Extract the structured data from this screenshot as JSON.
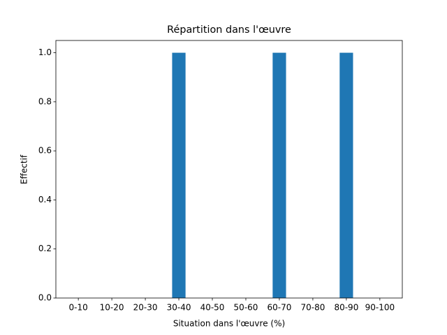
{
  "chart_data": {
    "type": "bar",
    "title": "Répartition dans l'œuvre",
    "xlabel": "Situation dans l'œuvre (%)",
    "ylabel": "Effectif",
    "categories": [
      "0-10",
      "10-20",
      "20-30",
      "30-40",
      "40-50",
      "50-60",
      "60-70",
      "70-80",
      "80-90",
      "90-100"
    ],
    "values": [
      0,
      0,
      0,
      1,
      0,
      0,
      1,
      0,
      1,
      0
    ],
    "color": "#1f77b4",
    "ylim": [
      0,
      1.05
    ],
    "yticks": [
      {
        "value": 0,
        "label": "0.0"
      },
      {
        "value": 0.2,
        "label": "0.2"
      },
      {
        "value": 0.4,
        "label": "0.4"
      },
      {
        "value": 0.6,
        "label": "0.6"
      },
      {
        "value": 0.8,
        "label": "0.8"
      },
      {
        "value": 1,
        "label": "1.0"
      }
    ],
    "grid": false
  }
}
